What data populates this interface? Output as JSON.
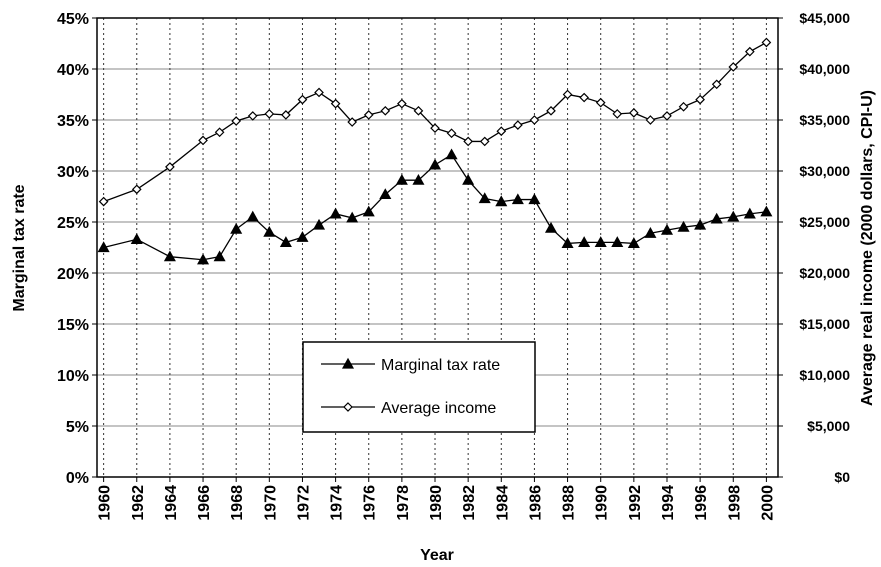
{
  "chart_data": {
    "type": "line",
    "x_label": "Year",
    "y_label": "Marginal tax rate",
    "y2_label": "Average real income (2000 dollars, CPI-U)",
    "x": [
      1960,
      1962,
      1964,
      1966,
      1967,
      1968,
      1969,
      1970,
      1971,
      1972,
      1973,
      1974,
      1975,
      1976,
      1977,
      1978,
      1979,
      1980,
      1981,
      1982,
      1983,
      1984,
      1985,
      1986,
      1987,
      1988,
      1989,
      1990,
      1991,
      1992,
      1993,
      1994,
      1995,
      1996,
      1997,
      1998,
      1999,
      2000
    ],
    "series": [
      {
        "name": "Marginal tax rate",
        "color": "#000000",
        "marker": "triangle",
        "values": [
          22.5,
          23.3,
          21.6,
          21.3,
          21.6,
          24.3,
          25.5,
          24.0,
          23.0,
          23.5,
          24.7,
          25.8,
          25.4,
          26.0,
          27.7,
          29.1,
          29.1,
          30.6,
          31.6,
          29.1,
          27.3,
          27.0,
          27.2,
          27.2,
          24.4,
          22.9,
          23.0,
          23.0,
          23.0,
          22.9,
          23.9,
          24.2,
          24.5,
          24.7,
          25.3,
          25.5,
          25.8,
          26.0
        ]
      },
      {
        "name": "Average income",
        "color": "#000000",
        "marker": "diamond",
        "axis": "y2",
        "values": [
          27000,
          28200,
          30400,
          33000,
          33800,
          34900,
          35400,
          35600,
          35500,
          37000,
          37700,
          36600,
          34800,
          35500,
          35900,
          36600,
          35900,
          34200,
          33700,
          32900,
          32900,
          33900,
          34500,
          35000,
          35900,
          37500,
          37200,
          36700,
          35600,
          35700,
          35000,
          35400,
          36300,
          37000,
          38500,
          40200,
          41700,
          42600
        ]
      }
    ],
    "xlim": [
      1959.6,
      2000.7
    ],
    "xticks": [
      1960,
      1962,
      1964,
      1966,
      1968,
      1970,
      1972,
      1974,
      1976,
      1978,
      1980,
      1982,
      1984,
      1986,
      1988,
      1990,
      1992,
      1994,
      1996,
      1998,
      2000
    ],
    "ylim": [
      0,
      45
    ],
    "yticks": [
      {
        "value": 0,
        "label": "0%"
      },
      {
        "value": 5,
        "label": "5%"
      },
      {
        "value": 10,
        "label": "10%"
      },
      {
        "value": 15,
        "label": "15%"
      },
      {
        "value": 20,
        "label": "20%"
      },
      {
        "value": 25,
        "label": "25%"
      },
      {
        "value": 30,
        "label": "30%"
      },
      {
        "value": 35,
        "label": "35%"
      },
      {
        "value": 40,
        "label": "40%"
      },
      {
        "value": 45,
        "label": "45%"
      }
    ],
    "y2lim": [
      0,
      45000
    ],
    "y2ticks": [
      {
        "value": 0,
        "label": "$0"
      },
      {
        "value": 5000,
        "label": "$5,000"
      },
      {
        "value": 10000,
        "label": "$10,000"
      },
      {
        "value": 15000,
        "label": "$15,000"
      },
      {
        "value": 20000,
        "label": "$20,000"
      },
      {
        "value": 25000,
        "label": "$25,000"
      },
      {
        "value": 30000,
        "label": "$30,000"
      },
      {
        "value": 35000,
        "label": "$35,000"
      },
      {
        "value": 40000,
        "label": "$40,000"
      },
      {
        "value": 45000,
        "label": "$45,000"
      }
    ],
    "grid": true,
    "legend": "lower center"
  }
}
